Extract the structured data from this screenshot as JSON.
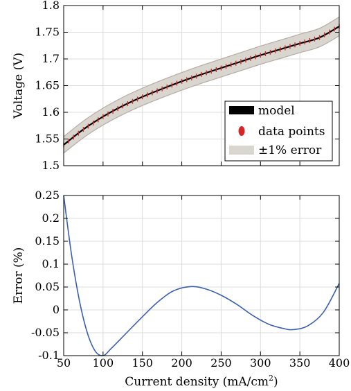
{
  "chart_data": [
    {
      "type": "line",
      "xlabel": "",
      "ylabel": "Voltage (V)",
      "xlim": [
        50,
        400
      ],
      "ylim": [
        1.5,
        1.8
      ],
      "x_ticks": [
        50,
        100,
        150,
        200,
        250,
        300,
        350,
        400
      ],
      "y_ticks": [
        1.5,
        1.55,
        1.6,
        1.65,
        1.7,
        1.75,
        1.8
      ],
      "y_tick_labels": [
        "1.5",
        "1.55",
        "1.6",
        "1.65",
        "1.7",
        "1.75",
        "1.8"
      ],
      "grid": true,
      "legend_position": "bottom-right",
      "legend": {
        "model": "model",
        "data": "data points",
        "band": "±1% error"
      },
      "series": [
        {
          "name": "model",
          "color": "#000000",
          "x": [
            50,
            75,
            100,
            125,
            150,
            175,
            200,
            225,
            250,
            275,
            300,
            325,
            350,
            375,
            400
          ],
          "values": [
            1.539,
            1.568,
            1.592,
            1.612,
            1.629,
            1.644,
            1.658,
            1.671,
            1.683,
            1.695,
            1.707,
            1.718,
            1.729,
            1.74,
            1.761
          ]
        },
        {
          "name": "data points",
          "color": "#d62728",
          "x": [
            50,
            75,
            100,
            125,
            150,
            175,
            200,
            225,
            250,
            275,
            300,
            325,
            350,
            375,
            400
          ],
          "values": [
            1.539,
            1.568,
            1.592,
            1.612,
            1.629,
            1.644,
            1.658,
            1.671,
            1.683,
            1.695,
            1.707,
            1.718,
            1.729,
            1.74,
            1.761
          ]
        }
      ],
      "band": {
        "name": "±1% error",
        "relative_error": 0.01,
        "color": "#d8d6cf",
        "edge_color": "#b8aaa4"
      }
    },
    {
      "type": "line",
      "xlabel_parts": [
        "Current density (mA/cm",
        "2",
        ")"
      ],
      "ylabel": "Error (%)",
      "xlim": [
        50,
        400
      ],
      "ylim": [
        -0.1,
        0.25
      ],
      "x_ticks": [
        50,
        100,
        150,
        200,
        250,
        300,
        350,
        400
      ],
      "x_tick_labels": [
        "50",
        "100",
        "150",
        "200",
        "250",
        "300",
        "350",
        "400"
      ],
      "y_ticks": [
        -0.1,
        -0.05,
        0,
        0.05,
        0.1,
        0.15,
        0.2,
        0.25
      ],
      "y_tick_labels": [
        "-0.1",
        "-0.05",
        "0",
        "0.05",
        "0.1",
        "0.15",
        "0.2",
        "0.25"
      ],
      "grid": true,
      "series": [
        {
          "color": "#3a5fb0",
          "x": [
            50,
            60,
            70,
            80,
            90,
            100,
            110,
            130,
            150,
            170,
            190,
            212,
            230,
            250,
            270,
            290,
            310,
            330,
            342,
            360,
            380,
            400
          ],
          "values": [
            0.25,
            0.12,
            0.02,
            -0.05,
            -0.09,
            -0.1,
            -0.085,
            -0.05,
            -0.015,
            0.018,
            0.042,
            0.051,
            0.046,
            0.032,
            0.012,
            -0.012,
            -0.031,
            -0.041,
            -0.043,
            -0.035,
            -0.005,
            0.058
          ]
        }
      ]
    }
  ]
}
